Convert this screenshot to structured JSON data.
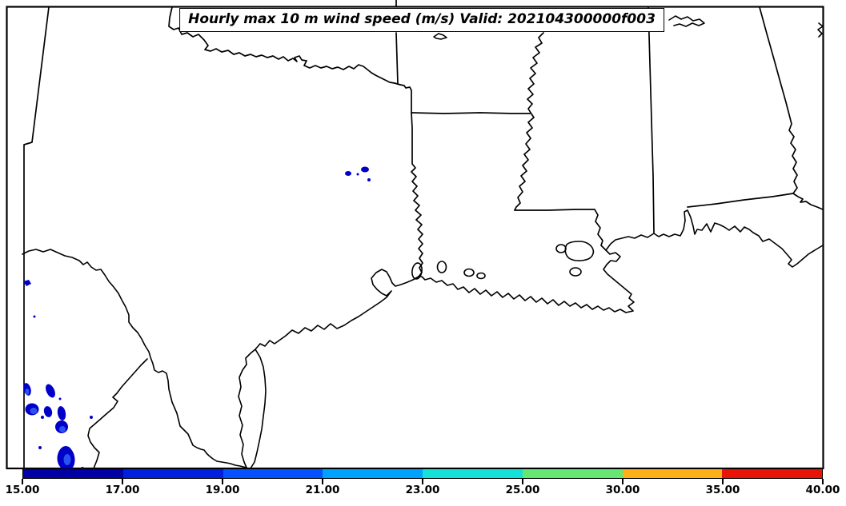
{
  "figure": {
    "title": "Hourly max 10 m wind speed (m/s) Valid: 202104300000f003",
    "background_color": "#ffffff",
    "frame_color": "#000000",
    "line_color": "#000000"
  },
  "chart_data": {
    "type": "heatmap",
    "title": "Hourly max 10 m wind speed (m/s) Valid: 202104300000f003",
    "variable": "Hourly max 10 m wind speed",
    "units": "m/s",
    "valid_time": "202104300000f003",
    "region": "South-central US Gulf Coast (Texas, Oklahoma, Arkansas, Louisiana, Mississippi, Alabama, Florida panhandle, northeast Mexico)",
    "colorbar": {
      "orientation": "horizontal",
      "range": [
        15,
        40
      ],
      "tick_labels": [
        "15.00",
        "17.00",
        "19.00",
        "21.00",
        "23.00",
        "25.00",
        "30.00",
        "35.00",
        "40.00"
      ],
      "tick_values": [
        15,
        17,
        19,
        21,
        23,
        25,
        30,
        35,
        40
      ],
      "segment_colors": [
        "#0000A5",
        "#001FDF",
        "#0550FF",
        "#00A2FF",
        "#16E1D8",
        "#66E673",
        "#FBB117",
        "#E81407"
      ]
    },
    "patches": [
      {
        "region": "northeast Mexico (Coahuila / Nuevo Leon / Tamaulipas)",
        "band": "15.00-19.00",
        "units": "m/s",
        "fill_colors": [
          "#0000C8",
          "#2A52F0"
        ]
      },
      {
        "region": "east Texas near Toledo Bend",
        "band": "15.00-17.00",
        "units": "m/s",
        "fill_colors": [
          "#0000C8"
        ]
      }
    ]
  }
}
